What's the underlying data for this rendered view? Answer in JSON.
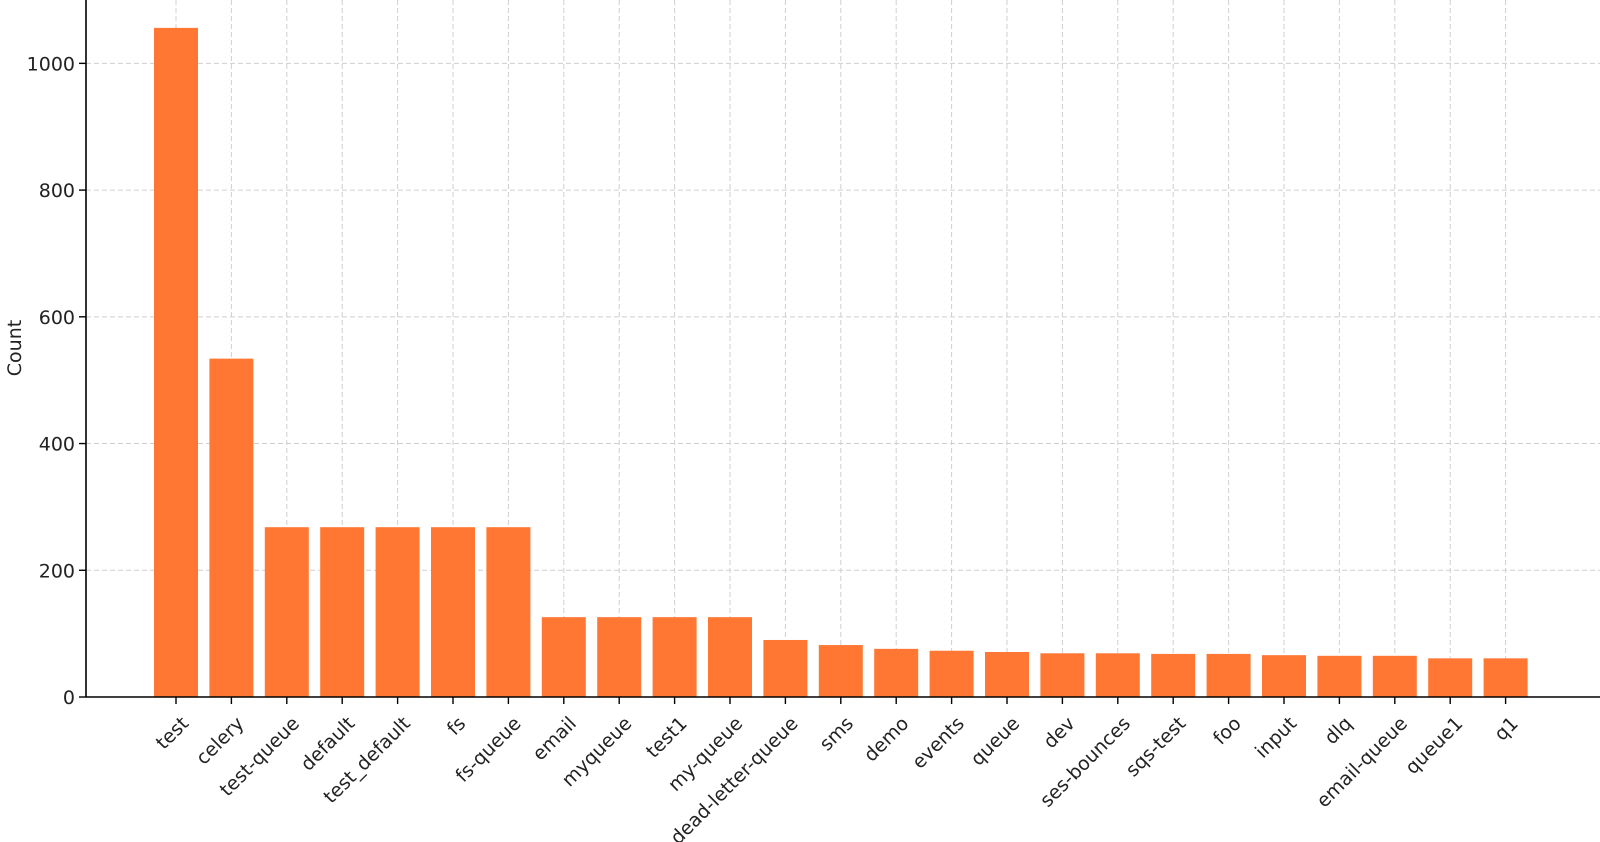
{
  "chart_data": {
    "type": "bar",
    "title": "",
    "xlabel": "",
    "ylabel": "Count",
    "ylim": [
      0,
      1100
    ],
    "yticks": [
      0,
      200,
      400,
      600,
      800,
      1000
    ],
    "grid": true,
    "bar_color": "#FF7733",
    "categories": [
      "test",
      "celery",
      "test-queue",
      "default",
      "test_default",
      "fs",
      "fs-queue",
      "email",
      "myqueue",
      "test1",
      "my-queue",
      "dead-letter-queue",
      "sms",
      "demo",
      "events",
      "queue",
      "dev",
      "ses-bounces",
      "sqs-test",
      "foo",
      "input",
      "dlq",
      "email-queue",
      "queue1",
      "q1"
    ],
    "values": [
      1056,
      534,
      268,
      268,
      268,
      268,
      268,
      126,
      126,
      126,
      126,
      90,
      82,
      76,
      73,
      71,
      69,
      69,
      68,
      68,
      66,
      65,
      65,
      61,
      61
    ]
  }
}
